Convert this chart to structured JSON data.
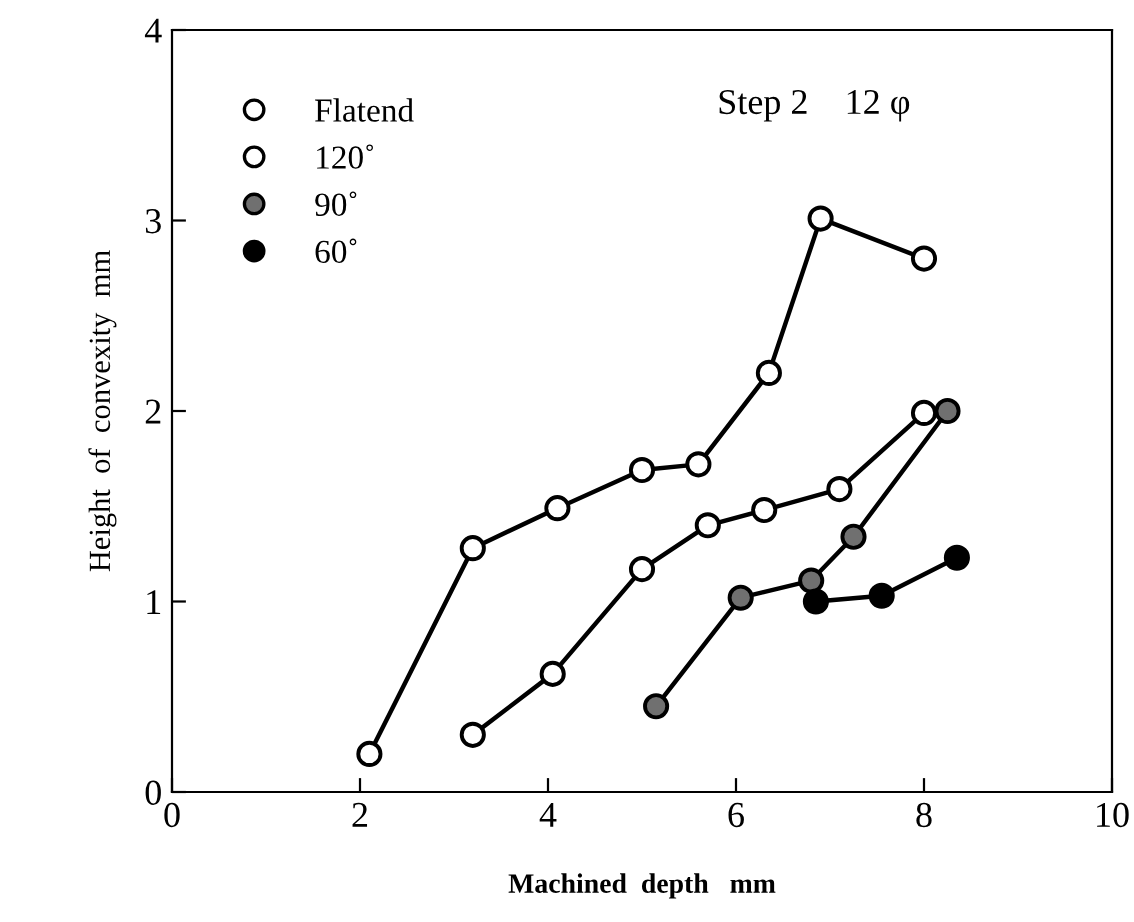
{
  "chart_data": {
    "type": "line",
    "xlabel": "Machined  depth   mm",
    "ylabel": "Height  of  convexity  mm",
    "xlim": [
      0,
      10
    ],
    "ylim": [
      0,
      4
    ],
    "xticks": [
      0,
      2,
      4,
      6,
      8,
      10
    ],
    "yticks": [
      0,
      1,
      2,
      3,
      4
    ],
    "grid": false,
    "legend": "top left",
    "marker": "circle",
    "line_style": "solid",
    "annotations": [
      "Step 2    12 φ"
    ],
    "series": [
      {
        "name": "Flatend",
        "color": "#000000",
        "x": [
          2.1,
          3.2,
          4.1,
          5.0,
          5.6,
          6.35,
          6.9,
          8.0
        ],
        "values": [
          0.2,
          1.28,
          1.49,
          1.69,
          1.72,
          2.2,
          3.01,
          2.8
        ]
      },
      {
        "name": "120˚",
        "color": "#000000",
        "x": [
          3.2,
          4.05,
          5.0,
          5.7,
          6.3,
          7.1,
          8.0
        ],
        "values": [
          0.3,
          0.62,
          1.17,
          1.4,
          1.48,
          1.59,
          1.99
        ]
      },
      {
        "name": "90˚",
        "color": "#000000",
        "x": [
          5.15,
          6.05,
          6.8,
          7.25,
          8.25
        ],
        "values": [
          0.45,
          1.02,
          1.11,
          1.34,
          2.0
        ]
      },
      {
        "name": "60˚",
        "color": "#000000",
        "x": [
          6.85,
          7.55,
          8.35
        ],
        "values": [
          1.0,
          1.03,
          1.23
        ]
      }
    ]
  }
}
